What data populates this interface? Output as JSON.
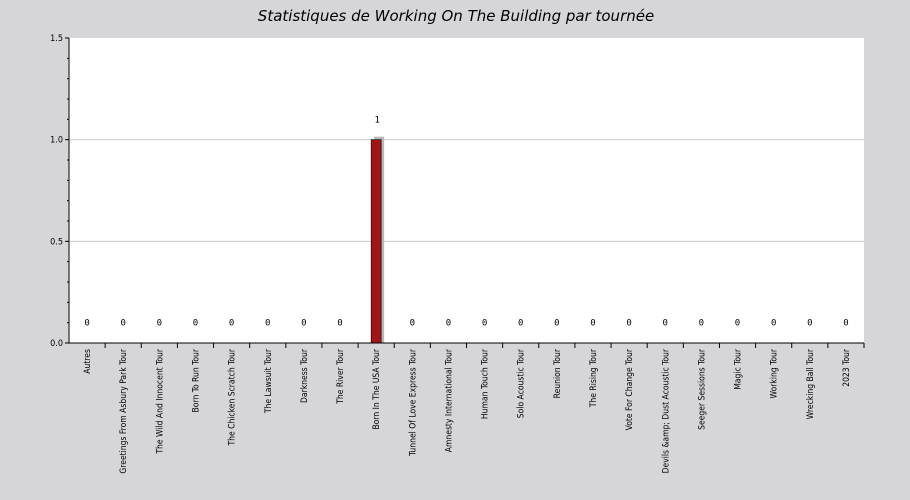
{
  "chart_data": {
    "type": "bar",
    "title": "Statistiques de Working On The Building par tournée",
    "xlabel": "",
    "ylabel": "",
    "ylim": [
      0,
      1.5
    ],
    "yticks": [
      "0.0",
      "0.5",
      "1.0",
      "1.5"
    ],
    "grid": true,
    "colors": {
      "bar": "#a31515",
      "bar_shadow": "#b8b8b8",
      "background": "#d6d5da",
      "plot": "#ffffff",
      "grid": "#cccccc"
    },
    "categories": [
      "Autres",
      "Greetings From Asbury Park Tour",
      "The Wild And Innocent Tour",
      "Born To Run Tour",
      "The Chicken Scratch Tour",
      "The Lawsuit Tour",
      "Darkness Tour",
      "The River Tour",
      "Born In The USA Tour",
      "Tunnel Of Love Express Tour",
      "Amnesty International Tour",
      "Human Touch Tour",
      "Solo Acoustic Tour",
      "Reunion Tour",
      "The Rising Tour",
      "Vote For Change Tour",
      "Devils &amp; Dust Acoustic Tour",
      "Seeger Sessions Tour",
      "Magic Tour",
      "Working Tour",
      "Wrecking Ball Tour",
      "2023 Tour"
    ],
    "values": [
      0,
      0,
      0,
      0,
      0,
      0,
      0,
      0,
      1,
      0,
      0,
      0,
      0,
      0,
      0,
      0,
      0,
      0,
      0,
      0,
      0,
      0
    ],
    "data_labels": [
      "0",
      "0",
      "0",
      "0",
      "0",
      "0",
      "0",
      "0",
      "1",
      "0",
      "0",
      "0",
      "0",
      "0",
      "0",
      "0",
      "0",
      "0",
      "0",
      "0",
      "0",
      "0"
    ]
  }
}
